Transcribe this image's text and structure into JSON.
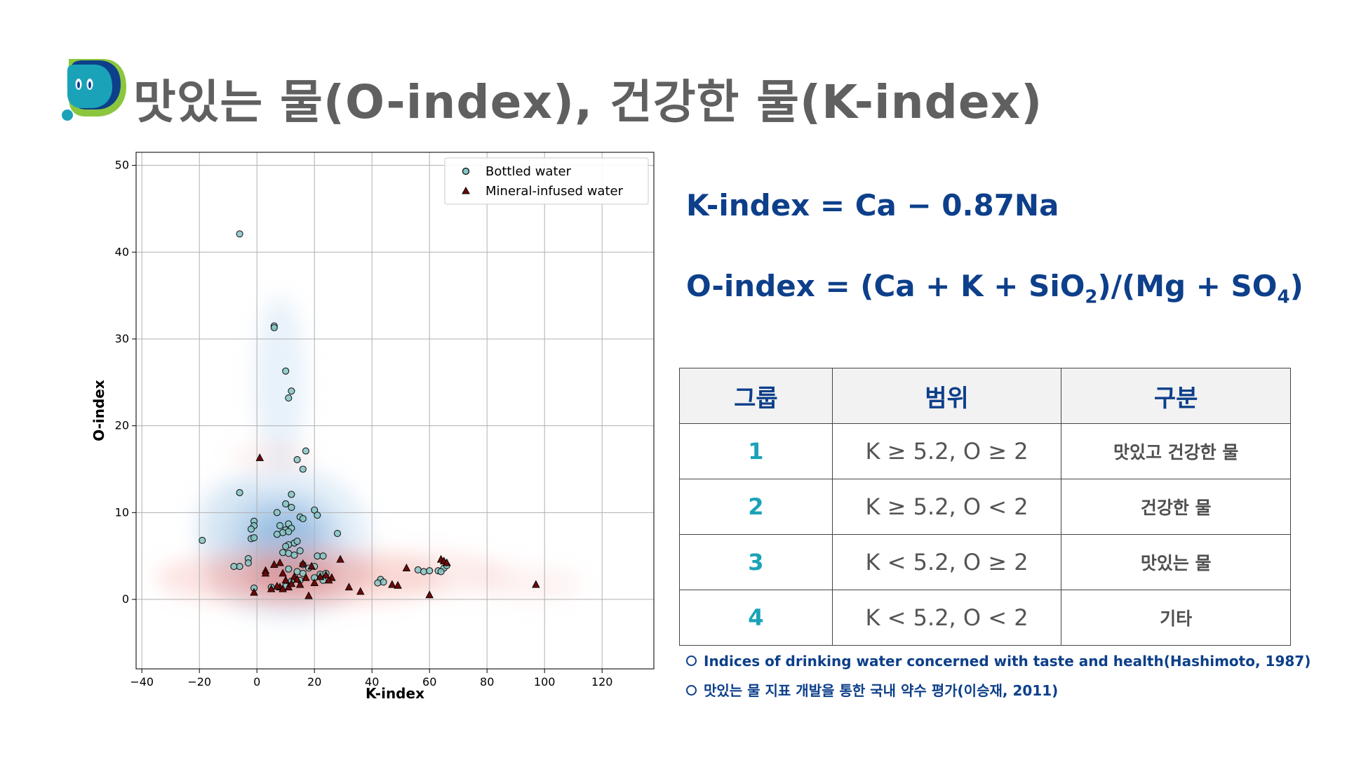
{
  "title": "맛있는 물(O-index), 건강한 물(K-index)",
  "colors": {
    "title": "#606060",
    "accent_navy": "#0d3f8a",
    "accent_teal": "#1aa3b8",
    "logo_green": "#8cc63f",
    "logo_teal": "#1aa3b8",
    "logo_navy": "#0d3f8a",
    "bottled": "#86c5c4",
    "mineral": "#6b0a0a"
  },
  "logo_icon": "water-drop-character-icon",
  "formulas": {
    "k_index": "K-index = Ca − 0.87Na",
    "o_index": {
      "prefix": "O-index = (Ca + K + SiO",
      "sub1": "2",
      "middle": ")/(Mg + SO",
      "sub2": "4",
      "suffix": ")"
    }
  },
  "table": {
    "headers": [
      "그룹",
      "범위",
      "구분"
    ],
    "rows": [
      {
        "group": "1",
        "range": "K ≥ 5.2, O ≥ 2",
        "category": "맛있고 건강한 물"
      },
      {
        "group": "2",
        "range": "K ≥ 5.2, O < 2",
        "category": "건강한 물"
      },
      {
        "group": "3",
        "range": "K < 5.2, O ≥ 2",
        "category": "맛있는 물"
      },
      {
        "group": "4",
        "range": "K < 5.2, O < 2",
        "category": "기타"
      }
    ]
  },
  "references": [
    "Indices of drinking water concerned with taste and health(Hashimoto, 1987)",
    "맛있는 물 지표 개발을 통한 국내 약수 평가(이승재, 2011)"
  ],
  "chart_data": {
    "type": "scatter",
    "xlabel": "K-index",
    "ylabel": "O-index",
    "xlim": [
      -42,
      138
    ],
    "ylim": [
      -8,
      51.5
    ],
    "xticks": [
      -40,
      -20,
      0,
      20,
      40,
      60,
      80,
      100,
      120
    ],
    "yticks": [
      0,
      10,
      20,
      30,
      40,
      50
    ],
    "x_tick_labels": [
      "−40",
      "−20",
      "0",
      "20",
      "40",
      "60",
      "80",
      "100",
      "120"
    ],
    "y_tick_labels": [
      "0",
      "10",
      "20",
      "30",
      "40",
      "50"
    ],
    "grid": true,
    "legend": "top-right",
    "series": [
      {
        "name": "Bottled water",
        "marker": "circle",
        "color": "#86c5c4",
        "points": [
          [
            -6,
            42.1
          ],
          [
            6,
            31.5
          ],
          [
            6,
            31.3
          ],
          [
            10,
            26.3
          ],
          [
            12,
            24
          ],
          [
            11,
            23.2
          ],
          [
            17,
            17.1
          ],
          [
            14,
            16.1
          ],
          [
            16,
            15
          ],
          [
            -6,
            12.3
          ],
          [
            12,
            12.1
          ],
          [
            10,
            11
          ],
          [
            12,
            10.6
          ],
          [
            7,
            10
          ],
          [
            20,
            10.3
          ],
          [
            21,
            9.7
          ],
          [
            15,
            9.5
          ],
          [
            16,
            9.3
          ],
          [
            -1,
            9
          ],
          [
            -1,
            8.5
          ],
          [
            -2,
            8.1
          ],
          [
            8,
            8.5
          ],
          [
            11,
            8.7
          ],
          [
            12,
            8.2
          ],
          [
            10,
            8
          ],
          [
            9,
            7.7
          ],
          [
            11,
            7.8
          ],
          [
            7,
            7.5
          ],
          [
            28,
            7.6
          ],
          [
            -2,
            7
          ],
          [
            -1,
            7.1
          ],
          [
            -19,
            6.8
          ],
          [
            13,
            6.5
          ],
          [
            11,
            6.3
          ],
          [
            14,
            6.7
          ],
          [
            10,
            6.1
          ],
          [
            15,
            5.6
          ],
          [
            9,
            5.4
          ],
          [
            11,
            5.3
          ],
          [
            13,
            5.1
          ],
          [
            21,
            5
          ],
          [
            23,
            5
          ],
          [
            -3,
            4.7
          ],
          [
            -3,
            4.2
          ],
          [
            -6,
            3.8
          ],
          [
            -8,
            3.8
          ],
          [
            16,
            4
          ],
          [
            20,
            3.8
          ],
          [
            18,
            3.6
          ],
          [
            11,
            3.5
          ],
          [
            14,
            3.2
          ],
          [
            16,
            3
          ],
          [
            22,
            2.9
          ],
          [
            24,
            3
          ],
          [
            20,
            2.5
          ],
          [
            15,
            2.2
          ],
          [
            23,
            2.2
          ],
          [
            12,
            2.1
          ],
          [
            -1,
            1.3
          ],
          [
            43,
            2.3
          ],
          [
            44,
            2
          ],
          [
            42,
            1.9
          ],
          [
            56,
            3.4
          ],
          [
            58,
            3.2
          ],
          [
            60,
            3.3
          ],
          [
            63,
            3.3
          ],
          [
            65,
            3.6
          ],
          [
            66,
            3.9
          ],
          [
            64,
            3.2
          ],
          [
            5,
            1.4
          ],
          [
            10,
            1.5
          ]
        ]
      },
      {
        "name": "Mineral-infused water",
        "marker": "triangle",
        "color": "#6b0a0a",
        "points": [
          [
            1,
            16.3
          ],
          [
            64,
            4.6
          ],
          [
            65,
            4.4
          ],
          [
            66,
            4.2
          ],
          [
            97,
            1.7
          ],
          [
            29,
            4.6
          ],
          [
            -1,
            0.8
          ],
          [
            6,
            4
          ],
          [
            8,
            4.2
          ],
          [
            16,
            4.1
          ],
          [
            19,
            3.8
          ],
          [
            3,
            3.3
          ],
          [
            3,
            3
          ],
          [
            9,
            3
          ],
          [
            13,
            2.6
          ],
          [
            17,
            2.5
          ],
          [
            22,
            2.6
          ],
          [
            26,
            2.5
          ],
          [
            25,
            2.2
          ],
          [
            14,
            2.3
          ],
          [
            10,
            2.2
          ],
          [
            20,
            1.9
          ],
          [
            5,
            1.2
          ],
          [
            8,
            1.4
          ],
          [
            9,
            1.2
          ],
          [
            11,
            1.4
          ],
          [
            7,
            1.5
          ],
          [
            15,
            1.7
          ],
          [
            18,
            0.4
          ],
          [
            32,
            1.4
          ],
          [
            36,
            0.9
          ],
          [
            47,
            1.7
          ],
          [
            49,
            1.6
          ],
          [
            52,
            3.6
          ],
          [
            60,
            0.5
          ],
          [
            12,
            1.8
          ],
          [
            24,
            2.8
          ]
        ]
      }
    ]
  }
}
